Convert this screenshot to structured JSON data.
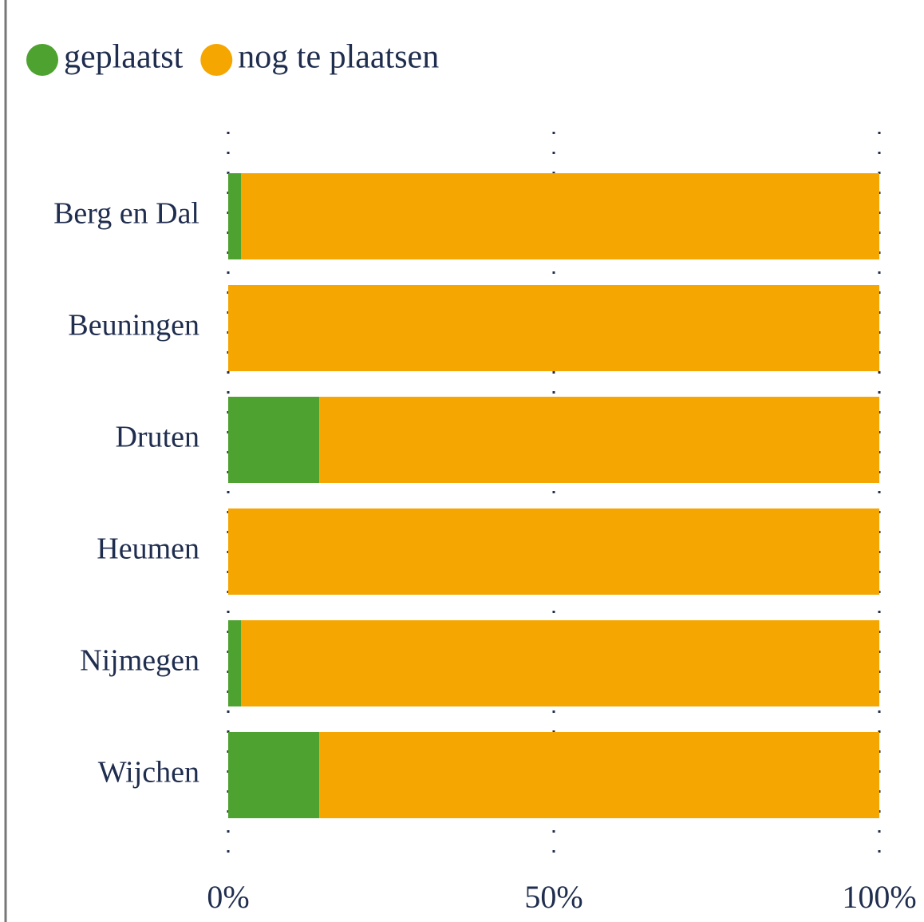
{
  "chart_data": {
    "type": "stacked-bar-horizontal",
    "categories": [
      "Berg en Dal",
      "Beuningen",
      "Druten",
      "Heumen",
      "Nijmegen",
      "Wijchen"
    ],
    "series": [
      {
        "name": "geplaatst",
        "color": "#4ea22f",
        "values": [
          2,
          0,
          14,
          0,
          2,
          14
        ]
      },
      {
        "name": "nog te plaatsen",
        "color": "#f5a600",
        "values": [
          98,
          100,
          86,
          100,
          98,
          86
        ]
      }
    ],
    "xlim": [
      0,
      100
    ],
    "xticks": [
      {
        "value": 0,
        "label": "0%"
      },
      {
        "value": 50,
        "label": "50%"
      },
      {
        "value": 100,
        "label": "100%"
      }
    ],
    "grid": true,
    "legend": "top-left"
  }
}
